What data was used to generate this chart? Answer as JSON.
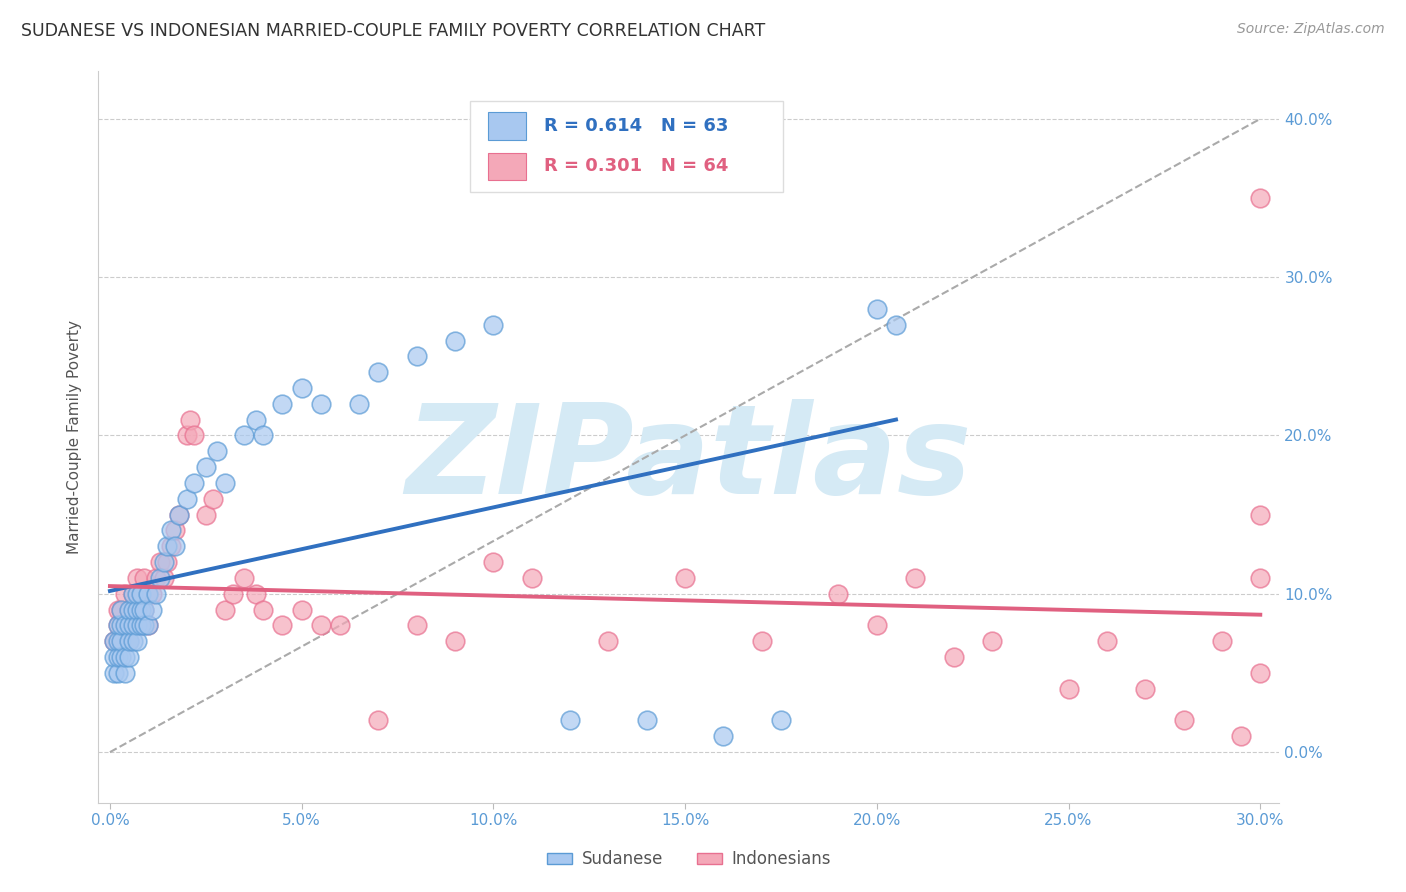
{
  "title": "SUDANESE VS INDONESIAN MARRIED-COUPLE FAMILY POVERTY CORRELATION CHART",
  "source": "Source: ZipAtlas.com",
  "ylabel": "Married-Couple Family Poverty",
  "xlim": [
    -0.003,
    0.305
  ],
  "ylim": [
    -0.032,
    0.43
  ],
  "ytick_right_labels": [
    "0.0%",
    "10.0%",
    "20.0%",
    "30.0%",
    "40.0%"
  ],
  "ytick_right_values": [
    0.0,
    0.1,
    0.2,
    0.3,
    0.4
  ],
  "xtick_labels": [
    "0.0%",
    "5.0%",
    "10.0%",
    "15.0%",
    "20.0%",
    "25.0%",
    "30.0%"
  ],
  "xtick_values": [
    0.0,
    0.05,
    0.1,
    0.15,
    0.2,
    0.25,
    0.3
  ],
  "legend_R_blue": "R = 0.614",
  "legend_N_blue": "N = 63",
  "legend_R_pink": "R = 0.301",
  "legend_N_pink": "N = 64",
  "color_blue_fill": "#A8C8F0",
  "color_pink_fill": "#F4A8B8",
  "color_blue_edge": "#5B9BD5",
  "color_pink_edge": "#E87090",
  "color_blue_line": "#3070C0",
  "color_pink_line": "#E06080",
  "color_axis_labels": "#5B9BD5",
  "color_watermark": "#D5EAF5",
  "watermark_text": "ZIPatlas",
  "sudanese_x": [
    0.001,
    0.001,
    0.001,
    0.002,
    0.002,
    0.002,
    0.002,
    0.003,
    0.003,
    0.003,
    0.003,
    0.004,
    0.004,
    0.004,
    0.005,
    0.005,
    0.005,
    0.005,
    0.006,
    0.006,
    0.006,
    0.006,
    0.007,
    0.007,
    0.007,
    0.007,
    0.008,
    0.008,
    0.008,
    0.009,
    0.009,
    0.01,
    0.01,
    0.011,
    0.012,
    0.013,
    0.014,
    0.015,
    0.016,
    0.017,
    0.018,
    0.02,
    0.022,
    0.025,
    0.028,
    0.03,
    0.035,
    0.038,
    0.04,
    0.045,
    0.05,
    0.055,
    0.065,
    0.07,
    0.08,
    0.09,
    0.1,
    0.12,
    0.14,
    0.16,
    0.175,
    0.2,
    0.205
  ],
  "sudanese_y": [
    0.05,
    0.06,
    0.07,
    0.05,
    0.06,
    0.07,
    0.08,
    0.06,
    0.07,
    0.08,
    0.09,
    0.05,
    0.06,
    0.08,
    0.06,
    0.07,
    0.08,
    0.09,
    0.07,
    0.08,
    0.09,
    0.1,
    0.07,
    0.08,
    0.09,
    0.1,
    0.08,
    0.09,
    0.1,
    0.08,
    0.09,
    0.08,
    0.1,
    0.09,
    0.1,
    0.11,
    0.12,
    0.13,
    0.14,
    0.13,
    0.15,
    0.16,
    0.17,
    0.18,
    0.19,
    0.17,
    0.2,
    0.21,
    0.2,
    0.22,
    0.23,
    0.22,
    0.22,
    0.24,
    0.25,
    0.26,
    0.27,
    0.02,
    0.02,
    0.01,
    0.02,
    0.28,
    0.27
  ],
  "indonesian_x": [
    0.001,
    0.002,
    0.002,
    0.003,
    0.003,
    0.004,
    0.004,
    0.005,
    0.005,
    0.006,
    0.006,
    0.007,
    0.007,
    0.008,
    0.008,
    0.009,
    0.009,
    0.01,
    0.01,
    0.011,
    0.012,
    0.013,
    0.014,
    0.015,
    0.016,
    0.017,
    0.018,
    0.02,
    0.021,
    0.022,
    0.025,
    0.027,
    0.03,
    0.032,
    0.035,
    0.038,
    0.04,
    0.045,
    0.05,
    0.055,
    0.06,
    0.07,
    0.08,
    0.09,
    0.1,
    0.11,
    0.13,
    0.15,
    0.17,
    0.19,
    0.2,
    0.21,
    0.22,
    0.23,
    0.25,
    0.26,
    0.27,
    0.28,
    0.29,
    0.295,
    0.3,
    0.3,
    0.3,
    0.3
  ],
  "indonesian_y": [
    0.07,
    0.08,
    0.09,
    0.07,
    0.09,
    0.08,
    0.1,
    0.07,
    0.09,
    0.08,
    0.1,
    0.09,
    0.11,
    0.08,
    0.1,
    0.09,
    0.11,
    0.08,
    0.1,
    0.1,
    0.11,
    0.12,
    0.11,
    0.12,
    0.13,
    0.14,
    0.15,
    0.2,
    0.21,
    0.2,
    0.15,
    0.16,
    0.09,
    0.1,
    0.11,
    0.1,
    0.09,
    0.08,
    0.09,
    0.08,
    0.08,
    0.02,
    0.08,
    0.07,
    0.12,
    0.11,
    0.07,
    0.11,
    0.07,
    0.1,
    0.08,
    0.11,
    0.06,
    0.07,
    0.04,
    0.07,
    0.04,
    0.02,
    0.07,
    0.01,
    0.11,
    0.35,
    0.05,
    0.15
  ]
}
